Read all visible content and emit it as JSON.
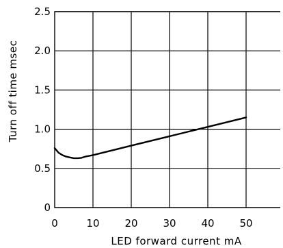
{
  "chart_data": {
    "type": "line",
    "xlabel": "LED forward current mA",
    "ylabel": "Turn off time msec",
    "xlim": [
      0,
      50
    ],
    "ylim": [
      0,
      2.5
    ],
    "x_ticks": [
      "0",
      "10",
      "20",
      "30",
      "40",
      "50"
    ],
    "y_ticks": [
      "0",
      "0.5",
      "1.0",
      "1.5",
      "2.0",
      "2.5"
    ],
    "grid": true,
    "series": [
      {
        "x": [
          0,
          0.5,
          1,
          2,
          3,
          4,
          5,
          6,
          7,
          8,
          10,
          20,
          30,
          40,
          50
        ],
        "values": [
          0.76,
          0.73,
          0.7,
          0.67,
          0.65,
          0.64,
          0.63,
          0.63,
          0.635,
          0.65,
          0.67,
          0.79,
          0.91,
          1.03,
          1.15
        ]
      }
    ]
  }
}
